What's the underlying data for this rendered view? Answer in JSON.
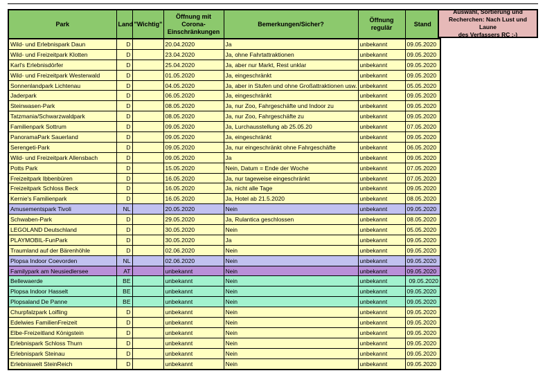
{
  "colors": {
    "header_green": "#8CC96D",
    "row_yellow": "#FFFFC1",
    "row_lavender": "#C1C1F0",
    "row_violet": "#B98FD8",
    "row_mint": "#A2F2CE",
    "note_pink": "#E6B9B8",
    "border": "#000000"
  },
  "note": {
    "text": "Auswahl, Sortierung und\nRecherchen: Nach Lust und Laune\ndes Verfassers RC ;-)"
  },
  "table": {
    "columns": [
      "Park",
      "Land",
      "\"Wichtig\"",
      "Öffnung mit Corona-Einschränkungen",
      "Bemerkungen/Sicher?",
      "Öffnung regulär",
      "Stand"
    ],
    "rows": [
      {
        "park": "Wild- und Erlebnispark Daun",
        "land": "D",
        "wichtig": "",
        "corona": "20.04.2020",
        "bemerkungen": "Ja",
        "regulaer": "unbekannt",
        "stand": "09.05.2020",
        "color": "yellow"
      },
      {
        "park": "Wild- und Freizeitpark Klotten",
        "land": "D",
        "wichtig": "",
        "corona": "23.04.2020",
        "bemerkungen": "Ja, ohne Fahrtattraktionen",
        "regulaer": "unbekannt",
        "stand": "09.05.2020",
        "color": "yellow"
      },
      {
        "park": "Karl's Erlebnisdörfer",
        "land": "D",
        "wichtig": "",
        "corona": "25.04.2020",
        "bemerkungen": "Ja, aber nur Markt, Rest unklar",
        "regulaer": "unbekannt",
        "stand": "09.05.2020",
        "color": "yellow"
      },
      {
        "park": "Wild- und Freizeitpark Westerwald",
        "land": "D",
        "wichtig": "",
        "corona": "01.05.2020",
        "bemerkungen": "Ja, eingeschränkt",
        "regulaer": "unbekannt",
        "stand": "09.05.2020",
        "color": "yellow"
      },
      {
        "park": "Sonnenlandpark Lichtenau",
        "land": "D",
        "wichtig": "",
        "corona": "04.05.2020",
        "bemerkungen": "Ja, aber in Stufen und ohne Großattraktionen usw.",
        "regulaer": "unbekannt",
        "stand": "05.05.2020",
        "color": "yellow"
      },
      {
        "park": "Jaderpark",
        "land": "D",
        "wichtig": "",
        "corona": "06.05.2020",
        "bemerkungen": "Ja, eingeschränkt",
        "regulaer": "unbekannt",
        "stand": "09.05.2020",
        "color": "yellow"
      },
      {
        "park": "Steinwasen-Park",
        "land": "D",
        "wichtig": "",
        "corona": "08.05.2020",
        "bemerkungen": "Ja, nur Zoo, Fahrgeschäfte und Indoor zu",
        "regulaer": "unbekannt",
        "stand": "09.05.2020",
        "color": "yellow"
      },
      {
        "park": "Tatzmania/Schwarzwaldpark",
        "land": "D",
        "wichtig": "",
        "corona": "08.05.2020",
        "bemerkungen": "Ja, nur Zoo, Fahrgeschäfte zu",
        "regulaer": "unbekannt",
        "stand": "09.05.2020",
        "color": "yellow"
      },
      {
        "park": "Familienpark Sottrum",
        "land": "D",
        "wichtig": "",
        "corona": "09.05.2020",
        "bemerkungen": "Ja, Lurchausstellung ab 25.05.20",
        "regulaer": "unbekannt",
        "stand": "07.05.2020",
        "color": "yellow"
      },
      {
        "park": "PanoramaPark Sauerland",
        "land": "D",
        "wichtig": "",
        "corona": "09.05.2020",
        "bemerkungen": "Ja, eingeschränkt",
        "regulaer": "unbekannt",
        "stand": "09.05.2020",
        "color": "yellow"
      },
      {
        "park": "Serengeti-Park",
        "land": "D",
        "wichtig": "",
        "corona": "09.05.2020",
        "bemerkungen": "Ja, nur eingeschränkt ohne Fahrgeschäfte",
        "regulaer": "unbekannt",
        "stand": "06.05.2020",
        "color": "yellow"
      },
      {
        "park": "Wild- und Freizeitpark Allensbach",
        "land": "D",
        "wichtig": "",
        "corona": "09.05.2020",
        "bemerkungen": "Ja",
        "regulaer": "unbekannt",
        "stand": "09.05.2020",
        "color": "yellow"
      },
      {
        "park": "Potts Park",
        "land": "D",
        "wichtig": "",
        "corona": "15.05.2020",
        "bemerkungen": "Nein, Datum = Ende der Woche",
        "regulaer": "unbekannt",
        "stand": "07.05.2020",
        "color": "yellow"
      },
      {
        "park": "Freizeitpark Ibbenbüren",
        "land": "D",
        "wichtig": "",
        "corona": "16.05.2020",
        "bemerkungen": "Ja, nur tageweise eingeschränkt",
        "regulaer": "unbekannt",
        "stand": "07.05.2020",
        "color": "yellow"
      },
      {
        "park": "Freizeitpark Schloss Beck",
        "land": "D",
        "wichtig": "",
        "corona": "16.05.2020",
        "bemerkungen": "Ja, nicht alle Tage",
        "regulaer": "unbekannt",
        "stand": "09.05.2020",
        "color": "yellow"
      },
      {
        "park": "Kernie's Familienpark",
        "land": "D",
        "wichtig": "",
        "corona": "16.05.2020",
        "bemerkungen": "Ja, Hotel ab 21.5.2020",
        "regulaer": "unbekannt",
        "stand": "08.05.2020",
        "color": "yellow"
      },
      {
        "park": "Amusementspark Tivoli",
        "land": "NL",
        "wichtig": "",
        "corona": "20.05.2020",
        "bemerkungen": "Nein",
        "regulaer": "unbekannt",
        "stand": "09.05.2020",
        "color": "lavender"
      },
      {
        "park": "Schwaben-Park",
        "land": "D",
        "wichtig": "",
        "corona": "29.05.2020",
        "bemerkungen": "Ja, Rulantica geschlossen",
        "regulaer": "unbekannt",
        "stand": "08.05.2020",
        "color": "yellow"
      },
      {
        "park": "LEGOLAND Deutschland",
        "land": "D",
        "wichtig": "",
        "corona": "30.05.2020",
        "bemerkungen": "Nein",
        "regulaer": "unbekannt",
        "stand": "05.05.2020",
        "color": "yellow"
      },
      {
        "park": "PLAYMOBIL-FunPark",
        "land": "D",
        "wichtig": "",
        "corona": "30.05.2020",
        "bemerkungen": "Ja",
        "regulaer": "unbekannt",
        "stand": "09.05.2020",
        "color": "yellow"
      },
      {
        "park": "Traumland auf der Bärenhöhle",
        "land": "D",
        "wichtig": "",
        "corona": "02.06.2020",
        "bemerkungen": "Nein",
        "regulaer": "unbekannt",
        "stand": "09.05.2020",
        "color": "yellow"
      },
      {
        "park": "Plopsa Indoor Coevorden",
        "land": "NL",
        "wichtig": "",
        "corona": "02.06.2020",
        "bemerkungen": "Nein",
        "regulaer": "unbekannt",
        "stand": "09.05.2020",
        "color": "lavender"
      },
      {
        "park": "Familypark am Neusiedlersee",
        "land": "AT",
        "wichtig": "",
        "corona": "unbekannt",
        "bemerkungen": "Nein",
        "regulaer": "unbekannt",
        "stand": "09.05.2020",
        "color": "violet"
      },
      {
        "park": "Bellewaerde",
        "land": "BE",
        "wichtig": "",
        "corona": "unbekannt",
        "bemerkungen": "Nein",
        "regulaer": "unbekannt",
        "stand": "09.05.2020",
        "color": "mint",
        "stand_align": "right"
      },
      {
        "park": "Plopsa Indoor Hasselt",
        "land": "BE",
        "wichtig": "",
        "corona": "unbekannt",
        "bemerkungen": "Nein",
        "regulaer": "unbekannt",
        "stand": "09.05.2020",
        "color": "mint"
      },
      {
        "park": "Plopsaland De Panne",
        "land": "BE",
        "wichtig": "",
        "corona": "unbekannt",
        "bemerkungen": "Nein",
        "regulaer": "unbekannt",
        "stand": "09.05.2020",
        "color": "mint"
      },
      {
        "park": "Churpfalzpark Loifling",
        "land": "D",
        "wichtig": "",
        "corona": "unbekannt",
        "bemerkungen": "Nein",
        "regulaer": "unbekannt",
        "stand": "09.05.2020",
        "color": "yellow"
      },
      {
        "park": "Edelwies FamilienFreizeit",
        "land": "D",
        "wichtig": "",
        "corona": "unbekannt",
        "bemerkungen": "Nein",
        "regulaer": "unbekannt",
        "stand": "09.05.2020",
        "color": "yellow"
      },
      {
        "park": "Elbe-Freizeitland Königstein",
        "land": "D",
        "wichtig": "",
        "corona": "unbekannt",
        "bemerkungen": "Nein",
        "regulaer": "unbekannt",
        "stand": "09.05.2020",
        "color": "yellow"
      },
      {
        "park": "Erlebnispark Schloss Thurn",
        "land": "D",
        "wichtig": "",
        "corona": "unbekannt",
        "bemerkungen": "Nein",
        "regulaer": "unbekannt",
        "stand": "09.05.2020",
        "color": "yellow"
      },
      {
        "park": "Erlebnispark Steinau",
        "land": "D",
        "wichtig": "",
        "corona": "unbekannt",
        "bemerkungen": "Nein",
        "regulaer": "unbekannt",
        "stand": "09.05.2020",
        "color": "yellow"
      },
      {
        "park": "Erlebniswelt SteinReich",
        "land": "D",
        "wichtig": "",
        "corona": "unbekannt",
        "bemerkungen": "Nein",
        "regulaer": "unbekannt",
        "stand": "09.05.2020",
        "color": "yellow"
      }
    ]
  }
}
